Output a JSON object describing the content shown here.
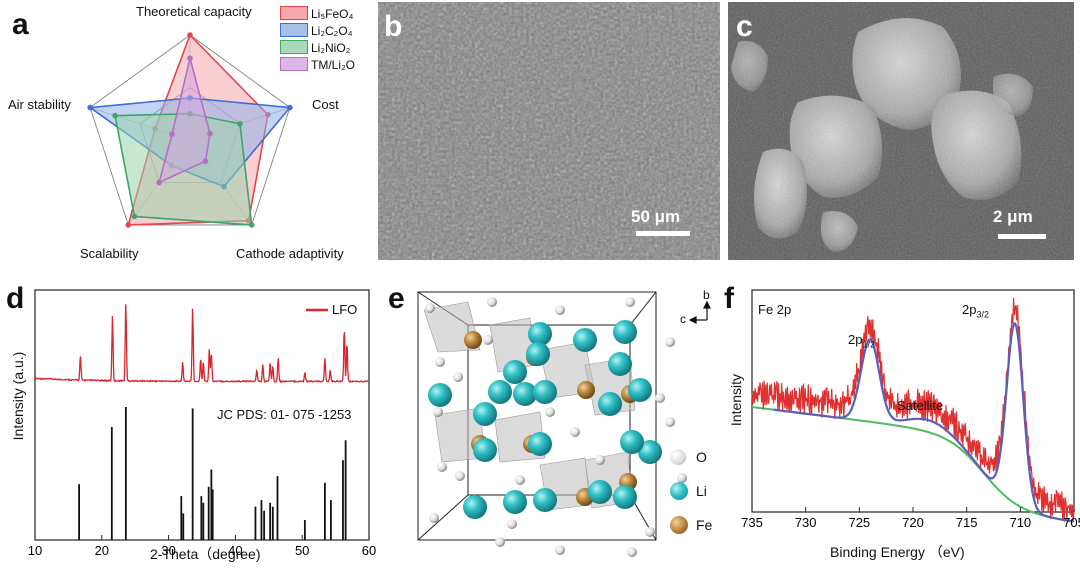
{
  "panels": {
    "a": {
      "label": "a",
      "axes": [
        "Theoretical capacity",
        "Cost",
        "Cathode adaptivity",
        "Scalability",
        "Air stability"
      ],
      "legend": [
        "Li₅FeO₄",
        "Li₂C₂O₄",
        "Li₂NiO₂",
        "TM/Li₂O"
      ]
    },
    "b": {
      "label": "b",
      "scale_text": "50 μm"
    },
    "c": {
      "label": "c",
      "scale_text": "2 μm"
    },
    "d": {
      "label": "d",
      "legend": "LFO",
      "pdf_text": "JC PDS: 01- 075 -1253",
      "xlabel": "2-Theta（degree)",
      "ylabel": "Intensity   (a.u.)"
    },
    "e": {
      "label": "e",
      "axis_b": "b",
      "axis_c": "c",
      "legend": [
        "O",
        "Li",
        "Fe"
      ]
    },
    "f": {
      "label": "f",
      "title": "Fe 2p",
      "peak1": "2p",
      "peak1_sub": "1/2",
      "peak2": "2p",
      "peak2_sub": "3/2",
      "satellite": "Satellite",
      "xlabel": "Binding Energy  （eV)",
      "ylabel": "Intensity"
    }
  },
  "colors": {
    "Li5FeO4": "#e8434a",
    "Li2C2O4": "#3b6fd6",
    "Li2NiO2": "#3da66a",
    "TMLi2O": "#b66fc9",
    "xrd_line": "#d8262c",
    "fit_line": "#5a5fb8",
    "bg_line": "#4dbb5f",
    "li_atom": "#2fc0c6",
    "fe_atom": "#b8853a",
    "o_atom": "#e8e8e8"
  },
  "chart_data": [
    {
      "type": "radar",
      "panel": "a",
      "axes": [
        "Theoretical capacity",
        "Cost",
        "Cathode adaptivity",
        "Scalability",
        "Air stability"
      ],
      "range": [
        0,
        1
      ],
      "series": [
        {
          "name": "Li₅FeO₄",
          "values": [
            1.0,
            0.78,
            0.95,
            1.0,
            0.35
          ]
        },
        {
          "name": "Li₂C₂O₄",
          "values": [
            0.4,
            1.0,
            0.55,
            0.3,
            1.0
          ]
        },
        {
          "name": "Li₂NiO₂",
          "values": [
            0.25,
            0.5,
            1.0,
            0.9,
            0.75
          ]
        },
        {
          "name": "TM/Li₂O",
          "values": [
            0.78,
            0.2,
            0.25,
            0.5,
            0.18
          ]
        }
      ]
    },
    {
      "type": "line",
      "panel": "d",
      "xlabel": "2-Theta（degree)",
      "xlim": [
        10,
        60
      ],
      "xticks": [
        10,
        20,
        30,
        40,
        50,
        60
      ],
      "series": [
        {
          "name": "LFO"
        }
      ],
      "peaks": [
        {
          "x": 16.8,
          "y": 0.32
        },
        {
          "x": 21.6,
          "y": 0.85
        },
        {
          "x": 23.6,
          "y": 1.0
        },
        {
          "x": 32.1,
          "y": 0.25
        },
        {
          "x": 33.6,
          "y": 0.95
        },
        {
          "x": 34.8,
          "y": 0.3
        },
        {
          "x": 35.2,
          "y": 0.25
        },
        {
          "x": 36.1,
          "y": 0.42
        },
        {
          "x": 36.4,
          "y": 0.35
        },
        {
          "x": 43.2,
          "y": 0.15
        },
        {
          "x": 44.1,
          "y": 0.22
        },
        {
          "x": 45.2,
          "y": 0.25
        },
        {
          "x": 45.6,
          "y": 0.2
        },
        {
          "x": 46.4,
          "y": 0.3
        },
        {
          "x": 50.4,
          "y": 0.12
        },
        {
          "x": 53.4,
          "y": 0.3
        },
        {
          "x": 54.2,
          "y": 0.15
        },
        {
          "x": 56.3,
          "y": 0.68
        },
        {
          "x": 56.7,
          "y": 0.5
        }
      ],
      "reference_lines": [
        {
          "x": 16.6,
          "h": 0.42
        },
        {
          "x": 21.5,
          "h": 0.85
        },
        {
          "x": 23.6,
          "h": 1.0
        },
        {
          "x": 31.9,
          "h": 0.33
        },
        {
          "x": 32.2,
          "h": 0.2
        },
        {
          "x": 33.6,
          "h": 0.99
        },
        {
          "x": 34.9,
          "h": 0.33
        },
        {
          "x": 35.2,
          "h": 0.28
        },
        {
          "x": 36.0,
          "h": 0.4
        },
        {
          "x": 36.4,
          "h": 0.53
        },
        {
          "x": 36.6,
          "h": 0.38
        },
        {
          "x": 43.0,
          "h": 0.25
        },
        {
          "x": 43.9,
          "h": 0.3
        },
        {
          "x": 44.3,
          "h": 0.22
        },
        {
          "x": 45.2,
          "h": 0.28
        },
        {
          "x": 45.6,
          "h": 0.25
        },
        {
          "x": 46.3,
          "h": 0.48
        },
        {
          "x": 50.4,
          "h": 0.15
        },
        {
          "x": 53.4,
          "h": 0.43
        },
        {
          "x": 54.3,
          "h": 0.3
        },
        {
          "x": 56.1,
          "h": 0.6
        },
        {
          "x": 56.5,
          "h": 0.75
        }
      ]
    },
    {
      "type": "line",
      "panel": "f",
      "xlabel": "Binding Energy  （eV)",
      "ylabel": "Intensity",
      "xlim": [
        735,
        705
      ],
      "xticks": [
        735,
        730,
        725,
        720,
        715,
        710,
        705
      ],
      "peaks": [
        {
          "label": "2p 1/2",
          "x": 724.0
        },
        {
          "label": "2p 3/2",
          "x": 710.5
        },
        {
          "label": "Satellite",
          "x": 718.5
        }
      ]
    }
  ]
}
